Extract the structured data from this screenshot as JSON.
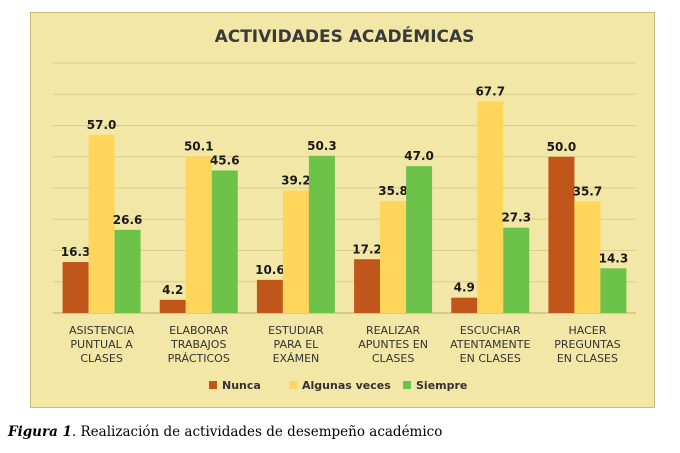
{
  "chart_data": {
    "type": "bar",
    "title": "ACTIVIDADES ACADÉMICAS",
    "categories": [
      [
        "ASISTENCIA",
        "PUNTUAL A",
        "CLASES"
      ],
      [
        "ELABORAR",
        "TRABAJOS",
        "PRÁCTICOS"
      ],
      [
        "ESTUDIAR",
        "PARA EL",
        "EXÁMEN"
      ],
      [
        "REALIZAR",
        "APUNTES EN",
        "CLASES"
      ],
      [
        "ESCUCHAR",
        "ATENTAMENTE",
        "EN CLASES"
      ],
      [
        "HACER",
        "PREGUNTAS",
        "EN CLASES"
      ]
    ],
    "series": [
      {
        "name": "Nunca",
        "color": "#c0561a",
        "values": [
          16.3,
          4.2,
          10.6,
          17.2,
          4.9,
          50.0
        ]
      },
      {
        "name": "Algunas veces",
        "color": "#ffd55c",
        "values": [
          57.0,
          50.1,
          39.2,
          35.8,
          67.7,
          35.7
        ]
      },
      {
        "name": "Siempre",
        "color": "#6dc24a",
        "values": [
          26.6,
          45.6,
          50.3,
          47.0,
          27.3,
          14.3
        ]
      }
    ],
    "ylim": [
      0,
      80
    ],
    "grid": true,
    "legend": "bottom"
  },
  "caption": {
    "figure_label": "Figura 1",
    "text": ". Realización de actividades de desempeño académico"
  }
}
